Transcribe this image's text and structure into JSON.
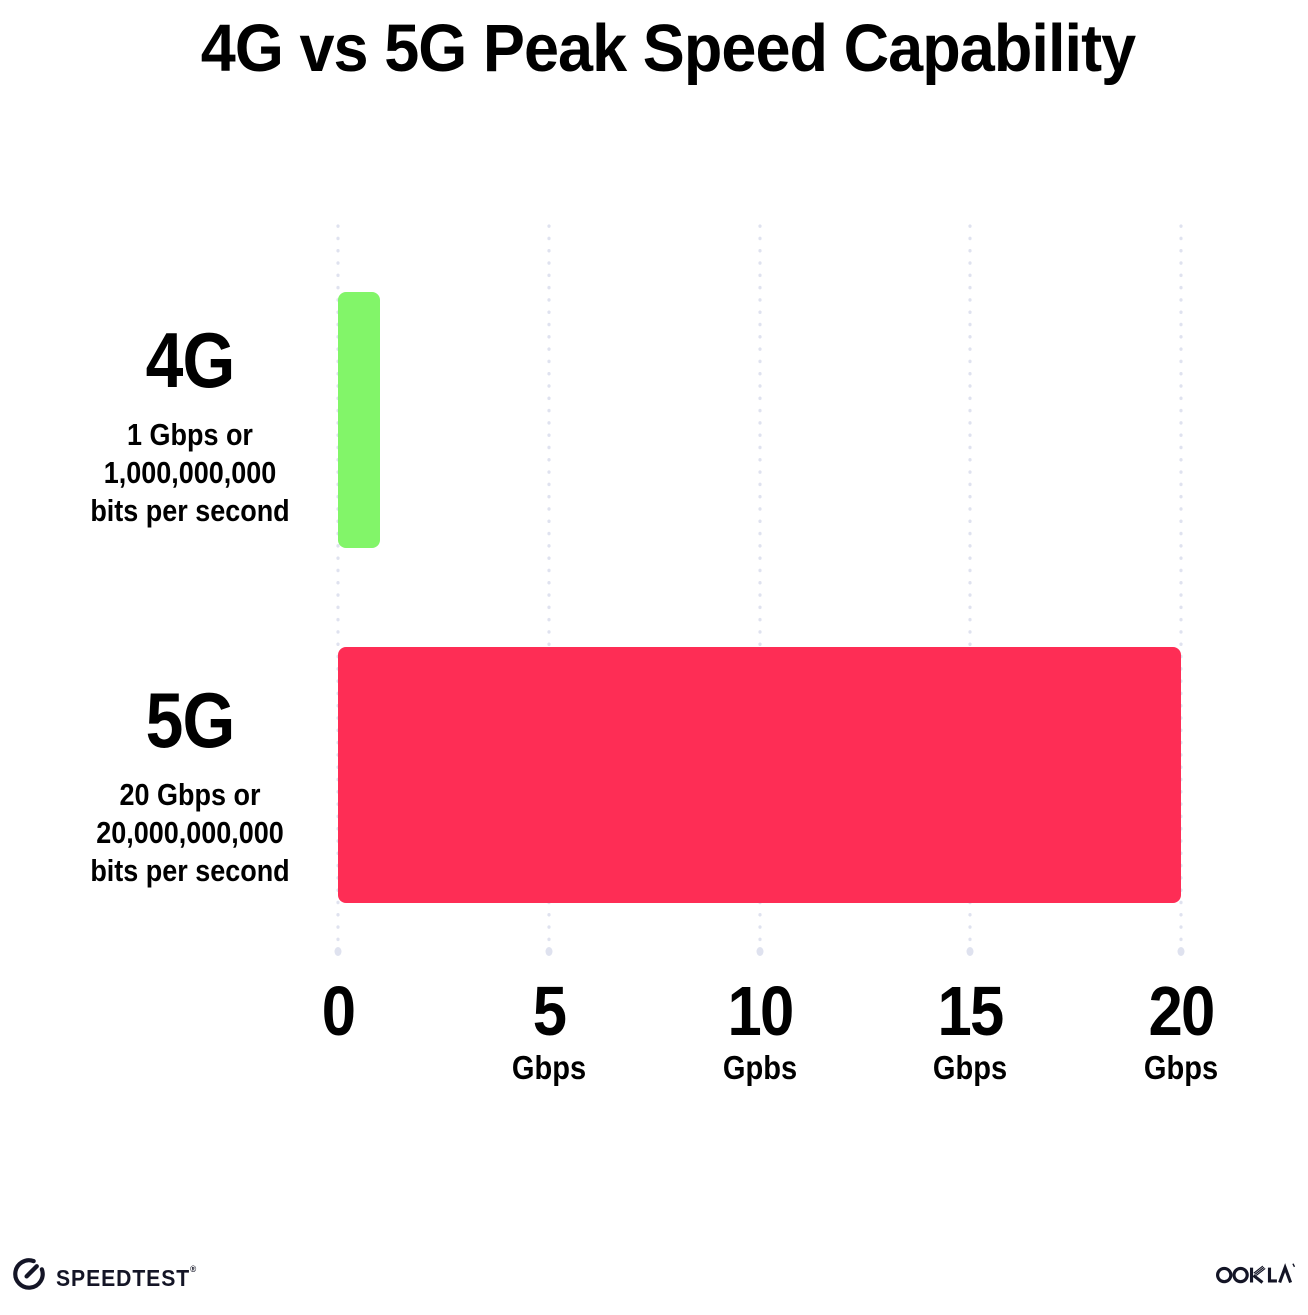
{
  "title": "4G vs 5G Peak Speed Capability",
  "chart_data": {
    "type": "bar",
    "orientation": "horizontal",
    "title": "4G vs 5G Peak Speed Capability",
    "categories": [
      "4G",
      "5G"
    ],
    "values": [
      1,
      20
    ],
    "value_unit": "Gbps",
    "xlim": [
      0,
      20
    ],
    "x_ticks": [
      0,
      5,
      10,
      15,
      20
    ],
    "x_tick_units": [
      "",
      "Gbps",
      "Gpbs",
      "Gbps",
      "Gbps"
    ],
    "grid": "dotted vertical gridlines",
    "legend": "none",
    "bar_colors": [
      "#82F569",
      "#FE2D55"
    ],
    "annotations": [
      "4G: 1 Gbps or 1,000,000,000 bits per second",
      "5G: 20 Gbps or 20,000,000,000 bits per second"
    ]
  },
  "rows": [
    {
      "label": "4G",
      "sublabel": "1 Gbps or\n1,000,000,000\nbits per second",
      "value_gbps": 1,
      "color": "#82F569"
    },
    {
      "label": "5G",
      "sublabel": "20 Gbps or\n20,000,000,000\nbits per second",
      "value_gbps": 20,
      "color": "#FE2D55"
    }
  ],
  "x_axis": {
    "ticks": [
      {
        "value": "0",
        "unit": ""
      },
      {
        "value": "5",
        "unit": "Gbps"
      },
      {
        "value": "10",
        "unit": "Gpbs"
      },
      {
        "value": "15",
        "unit": "Gbps"
      },
      {
        "value": "20",
        "unit": "Gbps"
      }
    ]
  },
  "footer": {
    "speedtest_label": "SPEEDTEST",
    "speedtest_trademark": "®",
    "ookla_label": "OOKLA"
  },
  "colors": {
    "bar_4g": "#82F569",
    "bar_5g": "#FE2D55",
    "gridline_dot": "#DFE2EF",
    "text": "#000000",
    "footer_ink": "#141526",
    "background": "#FFFFFF"
  }
}
